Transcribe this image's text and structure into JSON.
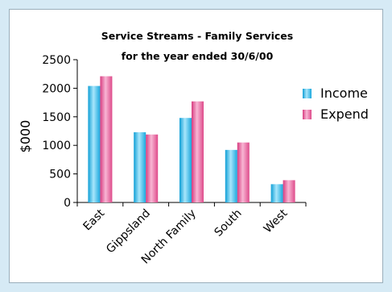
{
  "chart_data": {
    "type": "bar",
    "title": "Service Streams - Family Services",
    "subtitle": "for the year ended 30/6/00",
    "xlabel": "",
    "ylabel": "$000",
    "ylim": [
      0,
      2500
    ],
    "yticks": [
      0,
      500,
      1000,
      1500,
      2000,
      2500
    ],
    "grid": false,
    "legend_position": "right",
    "categories": [
      "East",
      "Gippsland",
      "North Family",
      "South",
      "West"
    ],
    "series": [
      {
        "name": "Income",
        "values": [
          2040,
          1230,
          1480,
          920,
          320
        ],
        "color": "#29b6e8"
      },
      {
        "name": "Expend",
        "values": [
          2210,
          1190,
          1770,
          1050,
          390
        ],
        "color": "#e8508f"
      }
    ]
  }
}
